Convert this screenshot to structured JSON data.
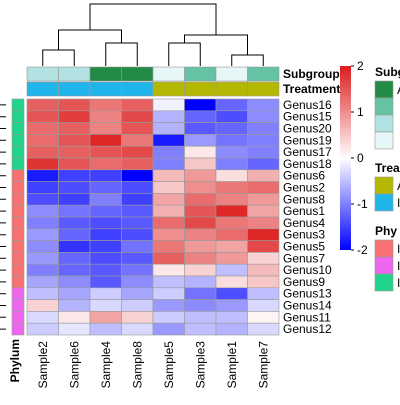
{
  "chart_data": {
    "type": "heatmap",
    "samples": [
      "Sample2",
      "Sample6",
      "Sample4",
      "Sample8",
      "Sample5",
      "Sample3",
      "Sample1",
      "Sample7"
    ],
    "genera": [
      "Genus16",
      "Genus15",
      "Genus20",
      "Genus19",
      "Genus17",
      "Genus18",
      "Genus6",
      "Genus2",
      "Genus8",
      "Genus1",
      "Genus4",
      "Genus3",
      "Genus5",
      "Genus7",
      "Genus10",
      "Genus9",
      "Genus13",
      "Genus14",
      "Genus11",
      "Genus12"
    ],
    "values": [
      [
        1.4,
        1.5,
        1.2,
        1.4,
        -0.1,
        -2.3,
        -1.2,
        -0.9
      ],
      [
        1.5,
        1.7,
        1.1,
        1.6,
        -0.6,
        -1.2,
        -1.4,
        -0.9
      ],
      [
        1.3,
        1.4,
        1.1,
        1.5,
        -0.6,
        -1.3,
        -1.2,
        -1.0
      ],
      [
        1.3,
        1.5,
        1.9,
        1.2,
        -1.8,
        -0.8,
        -1.1,
        -1.0
      ],
      [
        1.4,
        1.4,
        1.5,
        1.6,
        -1.0,
        0.2,
        -0.9,
        -1.0
      ],
      [
        1.8,
        1.5,
        1.3,
        1.4,
        -1.0,
        0.5,
        -1.0,
        -1.2
      ],
      [
        -1.8,
        -1.5,
        -1.5,
        -2.1,
        0.6,
        0.9,
        0.3,
        0.7
      ],
      [
        -1.5,
        -1.4,
        -1.2,
        -1.4,
        0.5,
        1.0,
        1.2,
        1.3
      ],
      [
        -1.4,
        -1.5,
        -1.0,
        -1.5,
        0.8,
        1.3,
        1.1,
        0.9
      ],
      [
        -0.9,
        -1.1,
        -1.2,
        -1.3,
        0.7,
        1.5,
        1.9,
        0.8
      ],
      [
        -1.0,
        -1.3,
        -1.4,
        -1.3,
        1.3,
        1.6,
        1.2,
        1.1
      ],
      [
        -0.8,
        -1.2,
        -1.5,
        -1.4,
        1.0,
        1.1,
        1.3,
        1.9
      ],
      [
        -0.9,
        -1.6,
        -1.5,
        -1.1,
        1.2,
        0.9,
        0.8,
        1.6
      ],
      [
        -0.8,
        -1.2,
        -1.4,
        -1.3,
        1.4,
        1.1,
        0.9,
        0.4
      ],
      [
        -1.0,
        -1.2,
        -1.3,
        -1.1,
        0.2,
        0.4,
        -0.5,
        0.6
      ],
      [
        -0.7,
        -0.9,
        -1.3,
        -0.9,
        -0.5,
        -0.6,
        0.3,
        0.5
      ],
      [
        -0.5,
        -0.7,
        -0.4,
        -0.7,
        -0.4,
        -1.1,
        -1.4,
        -0.5
      ],
      [
        0.4,
        -0.6,
        -0.3,
        -0.4,
        -0.8,
        -0.9,
        -0.8,
        -0.3
      ],
      [
        -0.3,
        0.2,
        0.8,
        0.4,
        -0.4,
        -0.5,
        -0.5,
        0.1
      ],
      [
        -0.4,
        -0.2,
        -0.5,
        -0.3,
        -0.8,
        -0.5,
        -0.6,
        -0.3
      ]
    ],
    "color_scale": {
      "min": -2,
      "max": 2,
      "low": "#0000ff",
      "mid": "#ffffff",
      "high": "#dd1c1c",
      "ticks": [
        2,
        1,
        0,
        -1,
        -2
      ]
    },
    "annotations": {
      "Subgroup": [
        "#b2e2e2",
        "#b2e2e2",
        "#238b45",
        "#238b45",
        "#e6f5f5",
        "#66c2a4",
        "#e6f5f5",
        "#66c2a4"
      ],
      "Treatment": [
        "#1fb4ea",
        "#1fb4ea",
        "#1fb4ea",
        "#1fb4ea",
        "#b5b800",
        "#b5b800",
        "#b5b800",
        "#b5b800"
      ],
      "Phylum": [
        "#22d48b",
        "#22d48b",
        "#22d48b",
        "#22d48b",
        "#22d48b",
        "#22d48b",
        "#f87171",
        "#f87171",
        "#f87171",
        "#f87171",
        "#f87171",
        "#f87171",
        "#f87171",
        "#f87171",
        "#f87171",
        "#f87171",
        "#ee66ee",
        "#ee66ee",
        "#ee66ee",
        "#ee66ee"
      ]
    }
  },
  "labels": {
    "subgroup": "Subgroup",
    "treatment": "Treatment",
    "phylum": "Phylum"
  },
  "legend": {
    "subgroup_title": "Subgr",
    "subgroup_colors": [
      "#238b45",
      "#66c2a4",
      "#b2e2e2",
      "#e6f5f5"
    ],
    "subgroup_labels": [
      "A",
      "",
      "",
      ""
    ],
    "treatment_title": "Trea",
    "treatment_colors": [
      "#b5b800",
      "#1fb4ea"
    ],
    "treatment_labels": [
      "A",
      "I"
    ],
    "phylum_title": "Phy",
    "phylum_colors": [
      "#f87171",
      "#ee66ee",
      "#22d48b"
    ],
    "phylum_labels": [
      "I",
      "I",
      "I"
    ]
  }
}
